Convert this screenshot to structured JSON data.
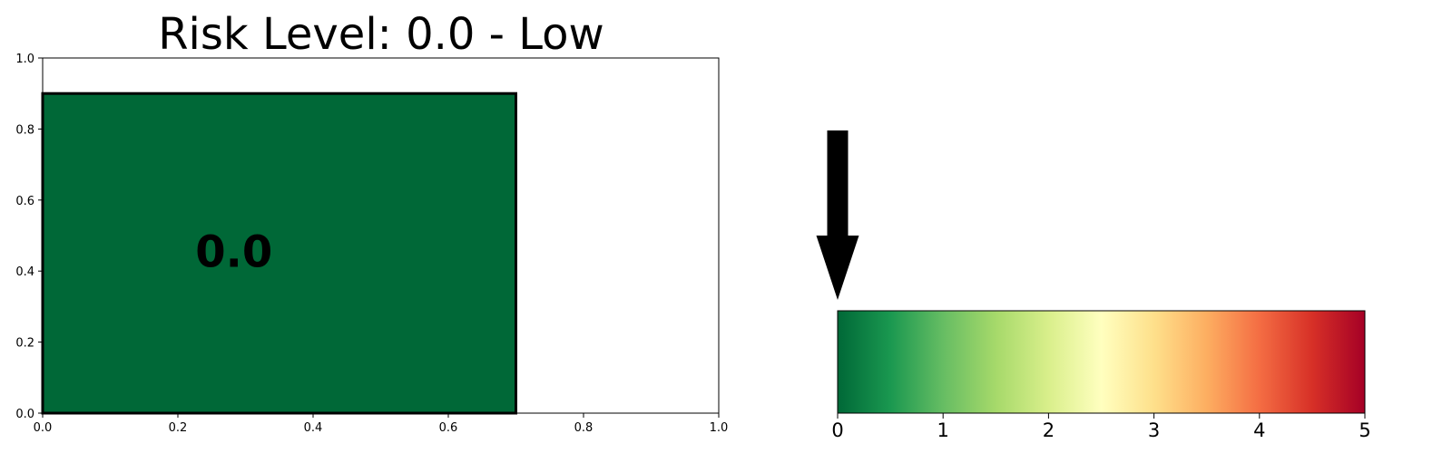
{
  "chart_data": [
    {
      "type": "bar",
      "title": "Risk Level: 0.0 - Low",
      "bar": {
        "x_start": 0.0,
        "x_end": 0.7,
        "y_start": 0.0,
        "y_end": 0.9,
        "color": "#006837",
        "edge_color": "#000000"
      },
      "value_label": "0.0",
      "xlim": [
        0,
        1
      ],
      "ylim": [
        0,
        1
      ],
      "x_ticks": [
        0.0,
        0.2,
        0.4,
        0.6,
        0.8,
        1.0
      ],
      "y_ticks": [
        0.0,
        0.2,
        0.4,
        0.6,
        0.8,
        1.0
      ],
      "x_tick_labels": [
        "0.0",
        "0.2",
        "0.4",
        "0.6",
        "0.8",
        "1.0"
      ],
      "y_tick_labels": [
        "0.0",
        "0.2",
        "0.4",
        "0.6",
        "0.8",
        "1.0"
      ],
      "grid": false
    },
    {
      "type": "heatmap",
      "colormap": "RdYlGn_r",
      "colormap_stops": [
        "#006837",
        "#1a9850",
        "#66bd63",
        "#a6d96a",
        "#d9ef8b",
        "#ffffbf",
        "#fee08b",
        "#fdae61",
        "#f46d43",
        "#d73027",
        "#a50026"
      ],
      "xlim": [
        0,
        5
      ],
      "x_ticks": [
        0,
        1,
        2,
        3,
        4,
        5
      ],
      "x_tick_labels": [
        "0",
        "1",
        "2",
        "3",
        "4",
        "5"
      ],
      "pointer_value": 0.0,
      "pointer_color": "#000000"
    }
  ]
}
